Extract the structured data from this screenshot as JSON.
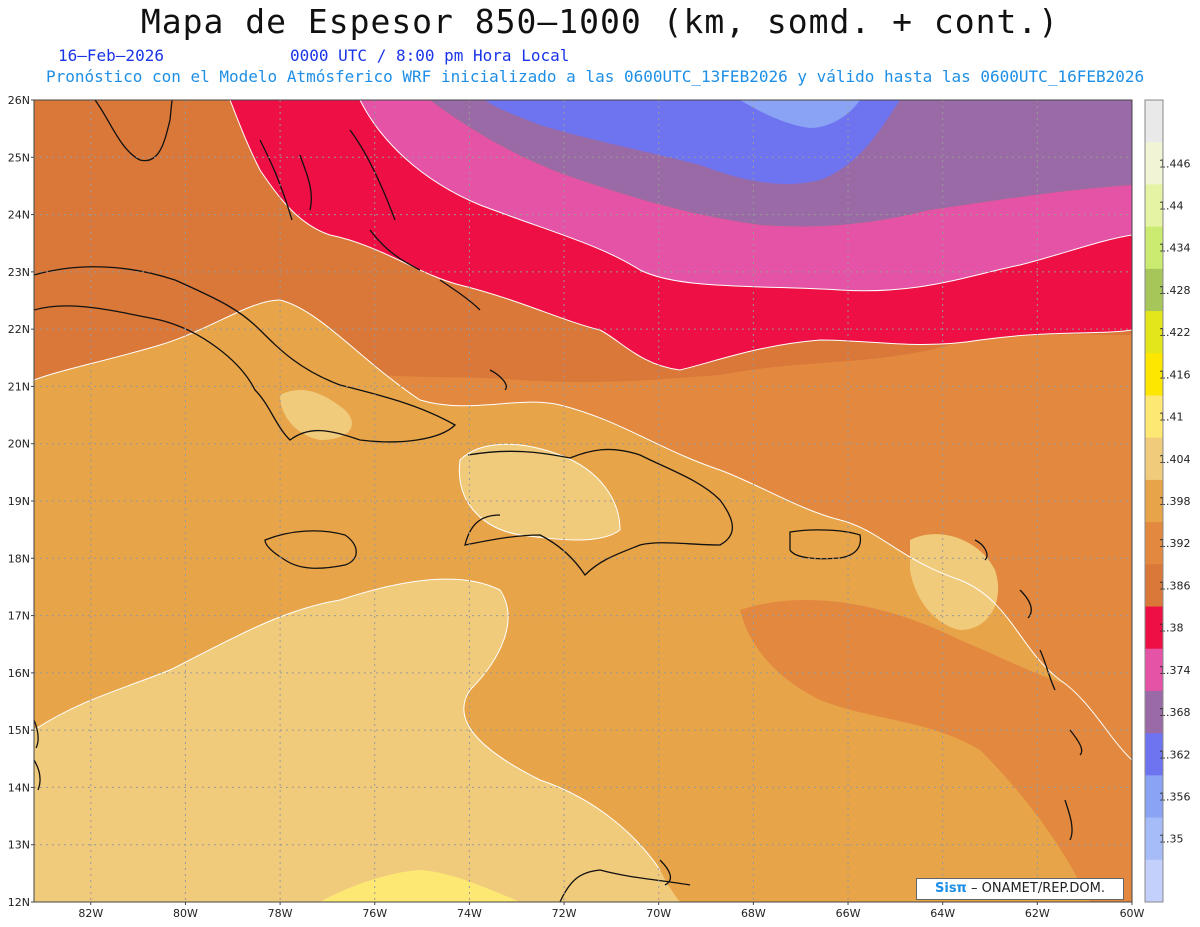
{
  "header": {
    "title": "Mapa de Espesor 850–1000 (km, somd. + cont.)",
    "date": "16–Feb–2026",
    "time": "0000 UTC / 8:00 pm Hora Local",
    "model_line": "Pronóstico con el Modelo Atmósferico WRF inicializado a las 0600UTC_13FEB2026 y válido hasta las  0600UTC_16FEB2026"
  },
  "map": {
    "lat_labels": [
      "26N",
      "25N",
      "24N",
      "23N",
      "22N",
      "21N",
      "20N",
      "19N",
      "18N",
      "17N",
      "16N",
      "15N",
      "14N",
      "13N",
      "12N"
    ],
    "lon_labels": [
      "82W",
      "80W",
      "78W",
      "76W",
      "74W",
      "72W",
      "70W",
      "68W",
      "66W",
      "64W",
      "62W",
      "60W"
    ],
    "lat_range": [
      12,
      26
    ],
    "lon_range": [
      -83.2,
      -60
    ],
    "grid": true,
    "fields": [
      {
        "level": 1.362,
        "color": "#6e74f0"
      },
      {
        "level": 1.368,
        "color": "#9a6aa6"
      },
      {
        "level": 1.374,
        "color": "#e453a5"
      },
      {
        "level": 1.38,
        "color": "#ee1045"
      },
      {
        "level": 1.386,
        "color": "#da783a"
      },
      {
        "level": 1.392,
        "color": "#e2893f"
      },
      {
        "level": 1.398,
        "color": "#e8a449"
      },
      {
        "level": 1.404,
        "color": "#f1cb7c"
      },
      {
        "level": 1.41,
        "color": "#fde874"
      }
    ]
  },
  "colorbar": {
    "levels": [
      {
        "label": "",
        "color": "#e9e9e9"
      },
      {
        "label": "1.446",
        "color": "#f1f5d6"
      },
      {
        "label": "1.44",
        "color": "#e5f4a4"
      },
      {
        "label": "1.434",
        "color": "#cbeb70"
      },
      {
        "label": "1.428",
        "color": "#a6c65a"
      },
      {
        "label": "1.422",
        "color": "#e4e61c"
      },
      {
        "label": "1.416",
        "color": "#fde600"
      },
      {
        "label": "1.41",
        "color": "#fde874"
      },
      {
        "label": "1.404",
        "color": "#f1cb7c"
      },
      {
        "label": "1.398",
        "color": "#e8a449"
      },
      {
        "label": "1.392",
        "color": "#e2893f"
      },
      {
        "label": "1.386",
        "color": "#da783a"
      },
      {
        "label": "1.38",
        "color": "#ee1045"
      },
      {
        "label": "1.374",
        "color": "#e453a5"
      },
      {
        "label": "1.368",
        "color": "#9a6aa6"
      },
      {
        "label": "1.362",
        "color": "#6e74f0"
      },
      {
        "label": "1.356",
        "color": "#8aa3f5"
      },
      {
        "label": "1.35",
        "color": "#a6bcf8"
      },
      {
        "label": "",
        "color": "#c3d0fb"
      }
    ]
  },
  "credit": {
    "sis": "Sisπ",
    "rest": " – ONAMET/REP.DOM."
  }
}
